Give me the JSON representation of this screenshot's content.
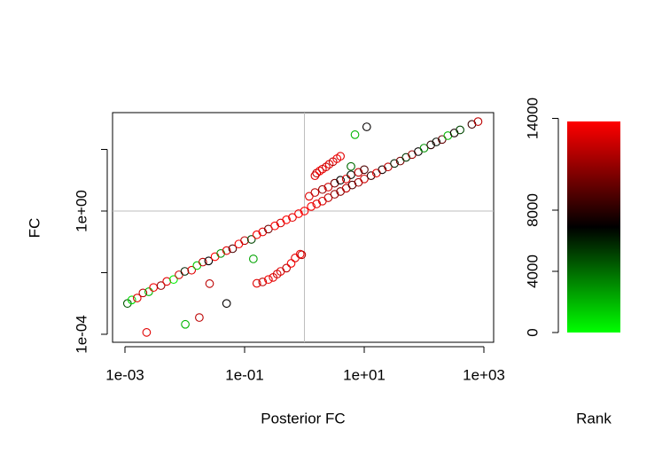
{
  "chart_data": {
    "type": "scatter",
    "x_label": "Posterior FC",
    "y_label": "FC",
    "colorbar_label": "Rank",
    "xscale": "log",
    "yscale": "log",
    "xlim": [
      0.00062,
      1456
    ],
    "ylim": [
      5.5e-05,
      1563
    ],
    "xticks": [
      {
        "value": 0.001,
        "label": "1e-03"
      },
      {
        "value": 0.1,
        "label": "1e-01"
      },
      {
        "value": 10,
        "label": "1e+01"
      },
      {
        "value": 1000,
        "label": "1e+03"
      }
    ],
    "yticks": [
      {
        "value": 0.0001,
        "label": "1e-04"
      },
      {
        "value": 0.01,
        "label": null
      },
      {
        "value": 1,
        "label": "1e+00"
      },
      {
        "value": 100,
        "label": null
      }
    ],
    "reference_x": 1,
    "reference_y": 1,
    "reference_color": "#bebebe",
    "colorscale": [
      "#00FF00",
      "#000000",
      "#FF0000"
    ],
    "zlim": [
      0,
      13800
    ],
    "zticks": [
      0,
      4000,
      8000,
      14000
    ],
    "x": [
      0.0011,
      0.0013,
      0.0016,
      0.002,
      0.0025,
      0.003,
      0.004,
      0.005,
      0.0065,
      0.008,
      0.01,
      0.013,
      0.016,
      0.02,
      0.025,
      0.032,
      0.04,
      0.05,
      0.063,
      0.08,
      0.1,
      0.13,
      0.16,
      0.2,
      0.25,
      0.32,
      0.4,
      0.5,
      0.63,
      0.8,
      1.0,
      1.3,
      1.6,
      2,
      2.5,
      3.2,
      4,
      5,
      6.3,
      8,
      10,
      13,
      16,
      20,
      25,
      32,
      40,
      50,
      63,
      80,
      100,
      130,
      160,
      200,
      250,
      320,
      400,
      630,
      800,
      1.2,
      1.5,
      2,
      2.5,
      3.2,
      4,
      5,
      6,
      8,
      10,
      6,
      1.5,
      1.6,
      1.8,
      2,
      2.3,
      2.6,
      3,
      3.5,
      4,
      7,
      11,
      0.16,
      0.2,
      0.25,
      0.3,
      0.35,
      0.4,
      0.5,
      0.6,
      0.7,
      0.85,
      0.9,
      0.0023,
      0.0102,
      0.0175,
      0.05,
      0.026,
      0.14
    ],
    "y": [
      0.001,
      0.0013,
      0.0015,
      0.0022,
      0.0024,
      0.0033,
      0.0038,
      0.0052,
      0.006,
      0.0085,
      0.011,
      0.012,
      0.017,
      0.022,
      0.024,
      0.033,
      0.042,
      0.052,
      0.06,
      0.085,
      0.11,
      0.12,
      0.17,
      0.21,
      0.26,
      0.33,
      0.41,
      0.52,
      0.62,
      0.82,
      1.0,
      1.4,
      1.7,
      2.1,
      2.7,
      3.5,
      4.3,
      5.5,
      7,
      8.5,
      11,
      14,
      17,
      22,
      27,
      35,
      42,
      55,
      68,
      85,
      110,
      140,
      175,
      210,
      280,
      340,
      430,
      650,
      800,
      3,
      4,
      5,
      6,
      8,
      10,
      11,
      15,
      18,
      22,
      28,
      14,
      17,
      20,
      23,
      27,
      33,
      40,
      50,
      60,
      300,
      540,
      0.0045,
      0.005,
      0.006,
      0.007,
      0.009,
      0.011,
      0.014,
      0.02,
      0.03,
      0.04,
      0.038,
      0.000115,
      0.00021,
      0.00035,
      0.001,
      0.0044,
      0.028
    ],
    "rank": [
      4500,
      1000,
      13000,
      12000,
      2000,
      13500,
      11000,
      13000,
      500,
      12500,
      6000,
      13000,
      1500,
      12000,
      7000,
      13800,
      3000,
      13000,
      9000,
      13500,
      12000,
      5000,
      13600,
      13000,
      10000,
      13700,
      12500,
      13800,
      13000,
      13500,
      13700,
      13500,
      13000,
      12800,
      12000,
      11000,
      10500,
      12000,
      9000,
      11000,
      12500,
      8500,
      13000,
      7500,
      12000,
      6000,
      10000,
      5500,
      11000,
      7000,
      3000,
      8000,
      6500,
      9500,
      2000,
      7500,
      5000,
      8500,
      12000,
      13000,
      12000,
      11000,
      12500,
      10000,
      7000,
      13000,
      6500,
      12000,
      9000,
      4000,
      13000,
      12000,
      13500,
      13000,
      12500,
      13000,
      12000,
      13500,
      13000,
      2000,
      7000,
      13000,
      12000,
      13500,
      13000,
      12500,
      13000,
      12000,
      13500,
      13000,
      13500,
      12000,
      13000,
      2000,
      12000,
      7000,
      12000,
      2500
    ]
  }
}
